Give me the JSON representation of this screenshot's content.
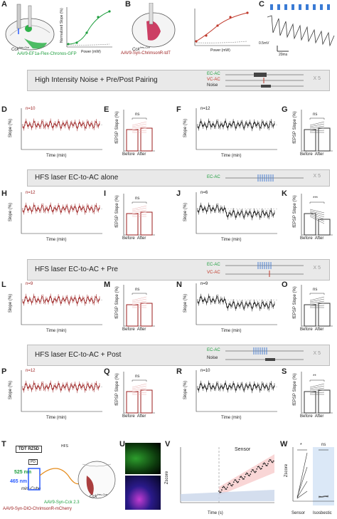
{
  "panels": {
    "A": {
      "letter": "A",
      "virus": "AAV9-EF1a-Flex-Chronos-GFP",
      "mouse": "Cck",
      "sup": "Ires-Cre",
      "ylabel": "Normalized Slope (%)",
      "xlabel": "Power (mW)",
      "yticks": [
        "160",
        "140",
        "120",
        "100",
        "80"
      ],
      "xticks": [
        "0",
        "10",
        "20",
        "30",
        "40"
      ]
    },
    "B": {
      "letter": "B",
      "virus": "AAV9-Syn-ChrimsonR-tdT",
      "mouse": "Cck",
      "sup": "Ires-Cre",
      "ylabel": "Normalized Slope (%)",
      "xlabel": "Power (mW)",
      "yticks": [
        "160",
        "140",
        "120",
        "100",
        "80"
      ],
      "xticks": [
        "0",
        "10",
        "20",
        "30",
        "40"
      ]
    },
    "C": {
      "letter": "C",
      "scale_v": "0.5mV",
      "scale_t": "20ms"
    }
  },
  "banners": [
    {
      "title": "High Intensity Noise + Pre/Post Pairing",
      "tracks": [
        "EC-AC",
        "VC-AC",
        "Noise"
      ],
      "reps": "X 5"
    },
    {
      "title": "HFS laser EC-to-AC alone",
      "tracks": [
        "EC-AC"
      ],
      "reps": "X 5"
    },
    {
      "title": "HFS laser EC-to-AC + Pre",
      "tracks": [
        "EC-AC",
        "VC-AC"
      ],
      "reps": "X 5"
    },
    {
      "title": "HFS laser EC-to-AC + Post",
      "tracks": [
        "EC-AC",
        "Noise"
      ],
      "reps": "X 5"
    }
  ],
  "timecourse_rows": [
    {
      "left": {
        "letter": "D",
        "n": "n=10"
      },
      "bar": {
        "letter": "E",
        "sig": "ns"
      },
      "right": {
        "letter": "F",
        "n": "n=12"
      },
      "bar2": {
        "letter": "G",
        "sig": "ns"
      }
    },
    {
      "left": {
        "letter": "H",
        "n": "n=12"
      },
      "bar": {
        "letter": "I",
        "sig": "ns"
      },
      "right": {
        "letter": "J",
        "n": "n=6"
      },
      "bar2": {
        "letter": "K",
        "sig": "***"
      }
    },
    {
      "left": {
        "letter": "L",
        "n": "n=9"
      },
      "bar": {
        "letter": "M",
        "sig": "ns"
      },
      "right": {
        "letter": "N",
        "n": "n=9"
      },
      "bar2": {
        "letter": "O",
        "sig": "ns"
      }
    },
    {
      "left": {
        "letter": "P",
        "n": "n=12"
      },
      "bar": {
        "letter": "Q",
        "sig": "ns"
      },
      "right": {
        "letter": "R",
        "n": "n=10"
      },
      "bar2": {
        "letter": "S",
        "sig": "**"
      }
    }
  ],
  "axis_text": {
    "slope": "Slope (%)",
    "time": "Time (min)",
    "fepsp": "fEPSP Slope (%)",
    "before": "Before",
    "after": "After",
    "tc_yticks": [
      "150",
      "100",
      "50",
      "0"
    ],
    "tc_xticks": [
      "-20",
      "0",
      "20",
      "40",
      "60"
    ],
    "bar_yticks": [
      "150",
      "100",
      "50",
      "0"
    ]
  },
  "bottom": {
    "T": {
      "letter": "T",
      "device": "TDT RZ5D",
      "pd": "PD",
      "wl1": "525 nm",
      "wl2": "465 nm",
      "cube": "mini-Cube",
      "virus1": "AAV9-Syn-Cck 2.3",
      "virus2": "AAV9-Syn-DIO-ChrimsonR-mCherry",
      "mouse": "Cck",
      "sup": "Ires-Cre",
      "region": "HFS"
    },
    "U": {
      "letter": "U"
    },
    "V": {
      "letter": "V",
      "legend": "Sensor",
      "ylabel": "Zscore",
      "xlabel": "Time (s)",
      "xticks": [
        "-100",
        "0",
        "100",
        "200"
      ],
      "yticks": [
        "3",
        "2",
        "1",
        "0",
        "-1"
      ]
    },
    "W": {
      "letter": "W",
      "sig1": "*",
      "sig2": "ns",
      "group1": "Sensor",
      "group2": "Isosbestic",
      "ylabel": "Zscore",
      "b": "Before",
      "a": "After"
    }
  },
  "colors": {
    "red": "#9b1c1c",
    "green": "#1e9e3e",
    "pink": "#e9a9a9",
    "blue_bg": "#dbe8f7",
    "laser": "#4a7fd1"
  }
}
